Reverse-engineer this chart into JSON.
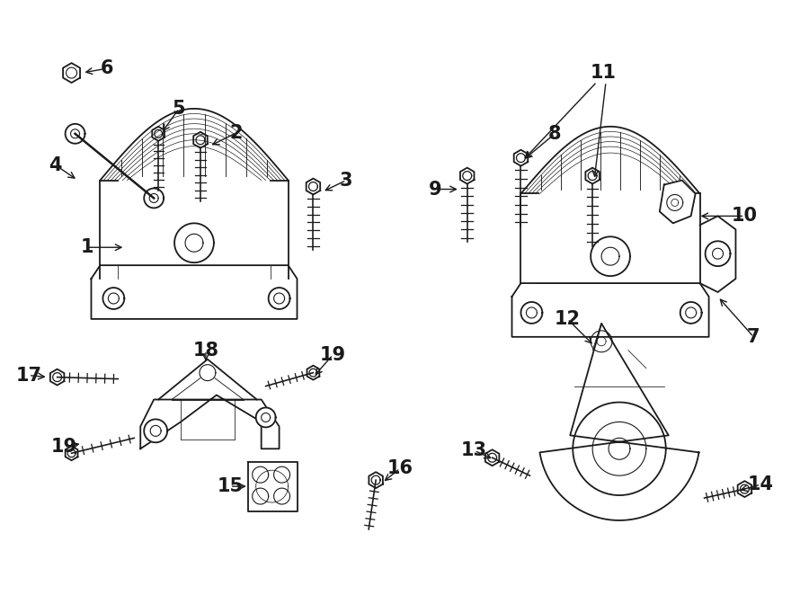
{
  "bg_color": "#ffffff",
  "line_color": "#1a1a1a",
  "figsize": [
    9.0,
    6.62
  ],
  "dpi": 100,
  "label_fontsize": 15,
  "arrow_lw": 1.0
}
